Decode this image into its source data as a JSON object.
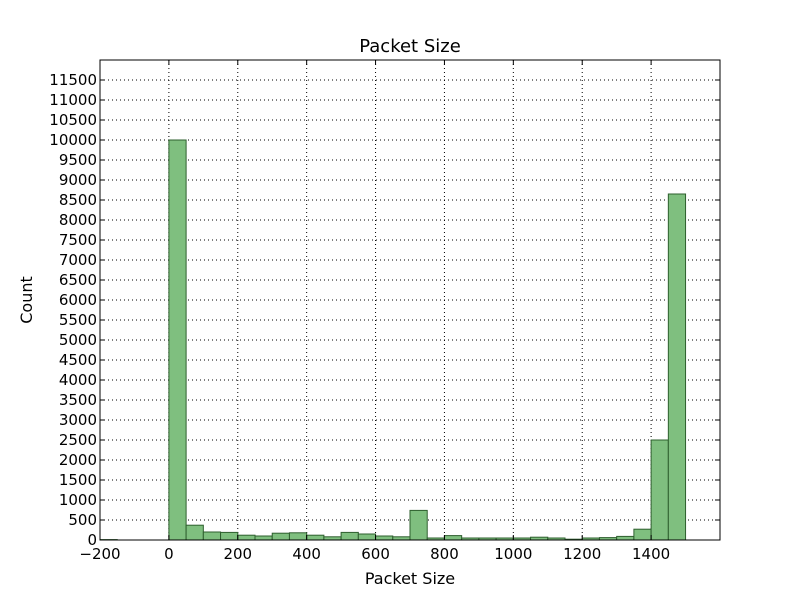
{
  "chart_data": {
    "type": "bar",
    "title": "Packet Size",
    "xlabel": "Packet Size",
    "ylabel": "Count",
    "xlim": [
      -200,
      1600
    ],
    "ylim": [
      0,
      12000
    ],
    "x_ticks": [
      -200,
      0,
      200,
      400,
      600,
      800,
      1000,
      1200,
      1400
    ],
    "x_tick_labels": [
      "−200",
      "0",
      "200",
      "400",
      "600",
      "800",
      "1000",
      "1200",
      "1400"
    ],
    "y_ticks": [
      0,
      500,
      1000,
      1500,
      2000,
      2500,
      3000,
      3500,
      4000,
      4500,
      5000,
      5500,
      6000,
      6500,
      7000,
      7500,
      8000,
      8500,
      9000,
      9500,
      10000,
      10500,
      11000,
      11500
    ],
    "y_tick_labels": [
      "0",
      "500",
      "1000",
      "1500",
      "2000",
      "2500",
      "3000",
      "3500",
      "4000",
      "4500",
      "5000",
      "5500",
      "6000",
      "6500",
      "7000",
      "7500",
      "8000",
      "8500",
      "9000",
      "9500",
      "10000",
      "10500",
      "11000",
      "11500"
    ],
    "grid": true,
    "bar_color": "#7fbf7f",
    "edge_color": "#2e5f2e",
    "bins": [
      {
        "x0": -200,
        "x1": -150,
        "value": 10
      },
      {
        "x0": -150,
        "x1": -100,
        "value": 0
      },
      {
        "x0": -100,
        "x1": -50,
        "value": 0
      },
      {
        "x0": -50,
        "x1": 0,
        "value": 0
      },
      {
        "x0": 0,
        "x1": 50,
        "value": 10000
      },
      {
        "x0": 50,
        "x1": 100,
        "value": 370
      },
      {
        "x0": 100,
        "x1": 150,
        "value": 200
      },
      {
        "x0": 150,
        "x1": 200,
        "value": 190
      },
      {
        "x0": 200,
        "x1": 250,
        "value": 120
      },
      {
        "x0": 250,
        "x1": 300,
        "value": 100
      },
      {
        "x0": 300,
        "x1": 350,
        "value": 170
      },
      {
        "x0": 350,
        "x1": 400,
        "value": 180
      },
      {
        "x0": 400,
        "x1": 450,
        "value": 120
      },
      {
        "x0": 450,
        "x1": 500,
        "value": 80
      },
      {
        "x0": 500,
        "x1": 550,
        "value": 190
      },
      {
        "x0": 550,
        "x1": 600,
        "value": 150
      },
      {
        "x0": 600,
        "x1": 650,
        "value": 100
      },
      {
        "x0": 650,
        "x1": 700,
        "value": 80
      },
      {
        "x0": 700,
        "x1": 750,
        "value": 740
      },
      {
        "x0": 750,
        "x1": 800,
        "value": 50
      },
      {
        "x0": 800,
        "x1": 850,
        "value": 110
      },
      {
        "x0": 850,
        "x1": 900,
        "value": 50
      },
      {
        "x0": 900,
        "x1": 950,
        "value": 50
      },
      {
        "x0": 950,
        "x1": 1000,
        "value": 50
      },
      {
        "x0": 1000,
        "x1": 1050,
        "value": 50
      },
      {
        "x0": 1050,
        "x1": 1100,
        "value": 70
      },
      {
        "x0": 1100,
        "x1": 1150,
        "value": 50
      },
      {
        "x0": 1150,
        "x1": 1200,
        "value": 20
      },
      {
        "x0": 1200,
        "x1": 1250,
        "value": 50
      },
      {
        "x0": 1250,
        "x1": 1300,
        "value": 60
      },
      {
        "x0": 1300,
        "x1": 1350,
        "value": 90
      },
      {
        "x0": 1350,
        "x1": 1400,
        "value": 270
      },
      {
        "x0": 1400,
        "x1": 1450,
        "value": 2500
      },
      {
        "x0": 1450,
        "x1": 1500,
        "value": 8650
      }
    ]
  }
}
